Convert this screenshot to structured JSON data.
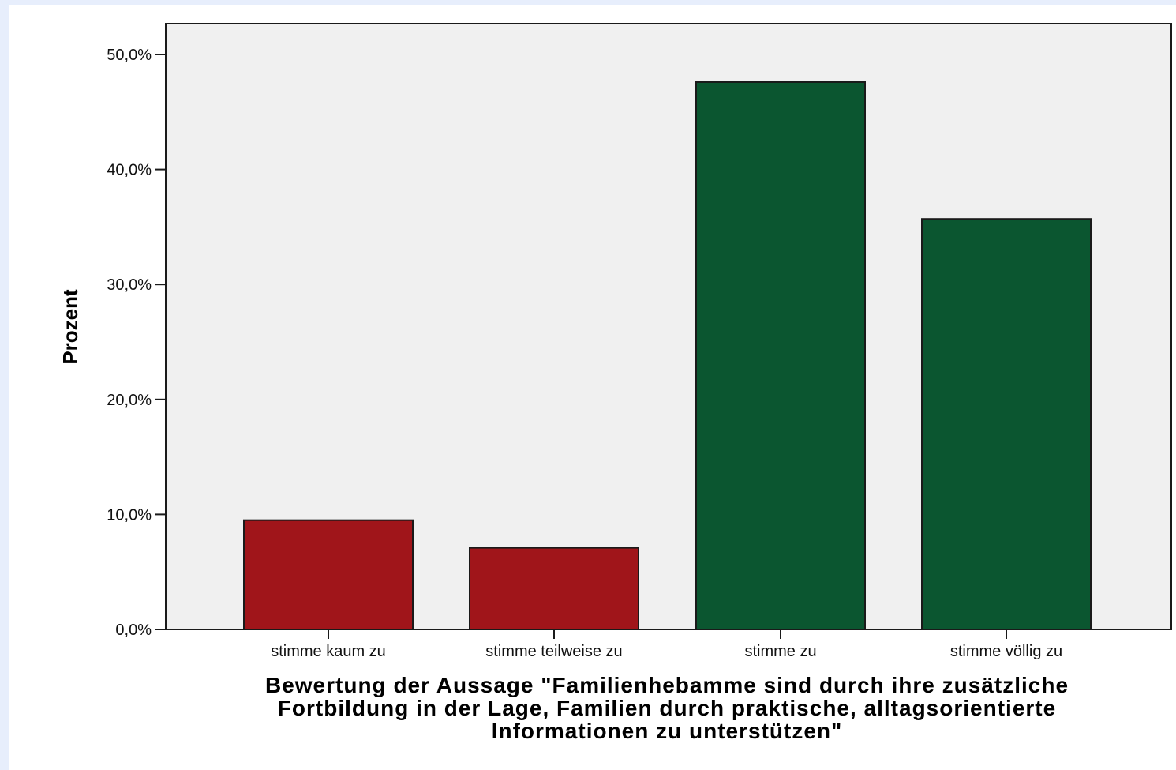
{
  "chart_data": {
    "type": "bar",
    "categories": [
      "stimme kaum zu",
      "stimme teilweise zu",
      "stimme zu",
      "stimme völlig zu"
    ],
    "values": [
      9.5,
      7.1,
      47.6,
      35.7
    ],
    "colors": [
      "#a0151a",
      "#a0151a",
      "#0b5630",
      "#0b5630"
    ],
    "ylabel": "Prozent",
    "xlabel_lines": [
      "Bewertung der Aussage \"Familienhebamme sind durch ihre zusätzliche",
      "Fortbildung in der Lage, Familien durch praktische, alltagsorientierte",
      "Informationen zu unterstützen\""
    ],
    "ylim": [
      0,
      50
    ],
    "yticks": [
      0,
      10,
      20,
      30,
      40,
      50
    ],
    "ytick_labels": [
      "0,0%",
      "10,0%",
      "20,0%",
      "30,0%",
      "40,0%",
      "50,0%"
    ],
    "plot_background": "#f0f0f0",
    "grid": false
  }
}
